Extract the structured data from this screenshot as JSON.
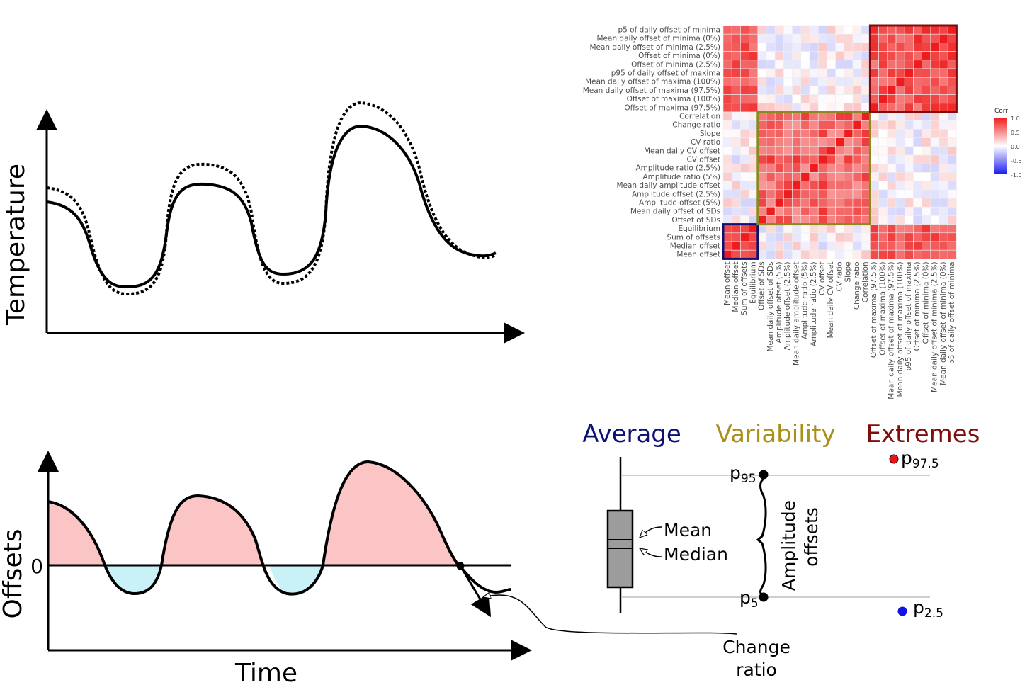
{
  "top_panel": {
    "y_axis_label": "Temperature"
  },
  "bottom_panel": {
    "y_axis_label": "Offsets",
    "x_axis_label": "Time",
    "zero_label": "0",
    "change_ratio_label_line1": "Change",
    "change_ratio_label_line2": "ratio"
  },
  "categories": {
    "average": {
      "label": "Average",
      "color": "#0d1173"
    },
    "variability": {
      "label": "Variability",
      "color": "#a8901a"
    },
    "extremes": {
      "label": "Extremes",
      "color": "#7f0d0d"
    }
  },
  "boxplot": {
    "mean_label": "Mean",
    "median_label": "Median",
    "p95": {
      "base": "p",
      "sub": "95"
    },
    "p5": {
      "base": "p",
      "sub": "5"
    },
    "p975": {
      "base": "p",
      "sub": "97.5",
      "color": "#e8161b"
    },
    "p25": {
      "base": "p",
      "sub": "2.5",
      "color": "#1212e6"
    },
    "amplitude_line1": "Amplitude",
    "amplitude_line2": "offsets"
  },
  "chart_data": {
    "type": "heatmap",
    "legend": {
      "title": "Corr",
      "ticks": [
        "1.0",
        "0.5",
        "0.0",
        "-0.5",
        "-1.0"
      ]
    },
    "row_labels_top_to_bottom": [
      "p5 of daily offset of minima",
      "Mean daily offset of minima (0%)",
      "Mean daily offset of minima (2.5%)",
      "Offset of minima (0%)",
      "Offset of minima (2.5%)",
      "p95 of daily offset of maxima",
      "Mean daily offset of maxima (100%)",
      "Mean daily offset of maxima (97.5%)",
      "Offset of maxima (100%)",
      "Offset of maxima (97.5%)",
      "Correlation",
      "Change ratio",
      "Slope",
      "CV ratio",
      "Mean daily CV offset",
      "CV offset",
      "Amplitude ratio (2.5%)",
      "Amplitude ratio (5%)",
      "Mean daily amplitude offset",
      "Amplitude offset (2.5%)",
      "Amplitude offset (5%)",
      "Mean daily offset of SDs",
      "Offset of SDs",
      "Equilibrium",
      "Sum of offsets",
      "Median offset",
      "Mean offset"
    ],
    "column_labels_left_to_right": [
      "Mean offset",
      "Median offset",
      "Sum of offsets",
      "Equilibrium",
      "Offset of SDs",
      "Mean daily offset of SDs",
      "Amplitude offset (5%)",
      "Amplitude offset (2.5%)",
      "Mean daily amplitude offset",
      "Amplitude ratio (5%)",
      "Amplitude ratio (2.5%)",
      "CV offset",
      "Mean daily CV offset",
      "CV ratio",
      "Slope",
      "Change ratio",
      "Correlation",
      "Offset of maxima (97.5%)",
      "Offset of maxima (100%)",
      "Mean daily offset of maxima (97.5%)",
      "Mean daily offset of maxima (100%)",
      "p95 of daily offset of maxima",
      "Offset of minima (2.5%)",
      "Offset of minima (0%)",
      "Mean daily offset of minima (2.5%)",
      "Mean daily offset of minima (0%)",
      "p5 of daily offset of minima"
    ],
    "groups": [
      {
        "name": "Average",
        "rows_from_bottom": [
          0,
          3
        ],
        "color": "#0d1173"
      },
      {
        "name": "Variability",
        "rows_from_bottom": [
          4,
          16
        ],
        "color": "#8a8a1e"
      },
      {
        "name": "Extremes",
        "rows_from_bottom": [
          17,
          26
        ],
        "color": "#7f0d0d"
      }
    ]
  }
}
